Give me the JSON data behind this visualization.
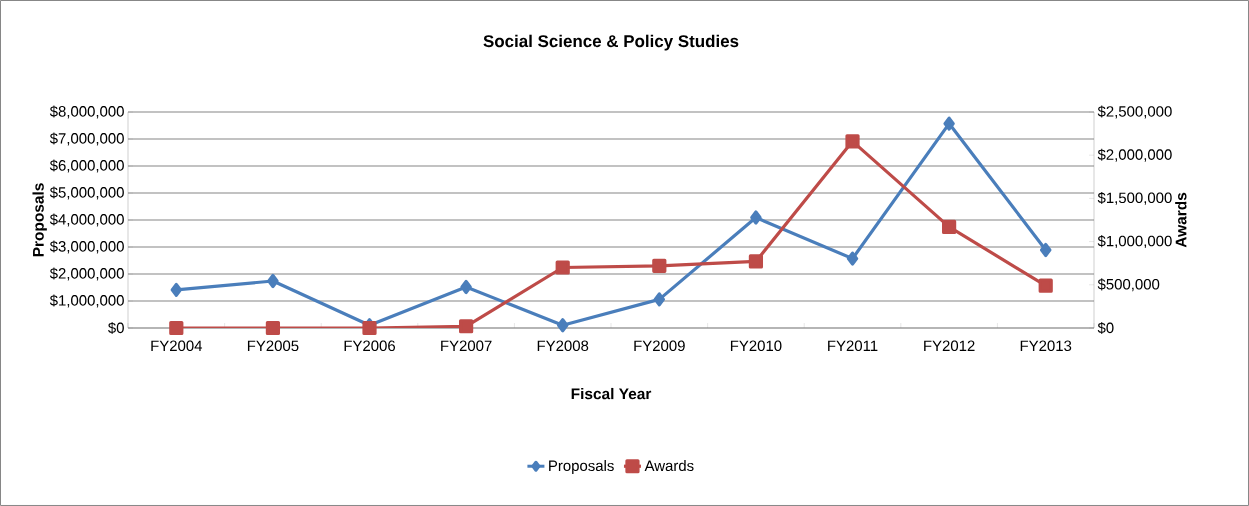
{
  "chart_data": {
    "type": "line",
    "title": "Social Science & Policy Studies",
    "xlabel": "Fiscal Year",
    "ylabel": "Proposals",
    "y2label": "Awards",
    "categories": [
      "FY2004",
      "FY2005",
      "FY2006",
      "FY2007",
      "FY2008",
      "FY2009",
      "FY2010",
      "FY2011",
      "FY2012",
      "FY2013"
    ],
    "series": [
      {
        "name": "Proposals",
        "color": "#4a7ebb",
        "marker": "diamond",
        "values": [
          1410000,
          1740000,
          100000,
          1520000,
          100000,
          1060000,
          4090000,
          2570000,
          7570000,
          2890000
        ]
      },
      {
        "name": "Awards",
        "color": "#be4b48",
        "marker": "square",
        "axis": "y2",
        "values": [
          0,
          0,
          0,
          20000,
          700000,
          720000,
          770000,
          2160000,
          1170000,
          490000
        ]
      }
    ],
    "ylim": [
      0,
      8000000
    ],
    "yticks": [
      {
        "value": 0,
        "label": "$0"
      },
      {
        "value": 1000000,
        "label": "$1,000,000"
      },
      {
        "value": 2000000,
        "label": "$2,000,000"
      },
      {
        "value": 3000000,
        "label": "$3,000,000"
      },
      {
        "value": 4000000,
        "label": "$4,000,000"
      },
      {
        "value": 5000000,
        "label": "$5,000,000"
      },
      {
        "value": 6000000,
        "label": "$6,000,000"
      },
      {
        "value": 7000000,
        "label": "$7,000,000"
      },
      {
        "value": 8000000,
        "label": "$8,000,000"
      }
    ],
    "y2lim": [
      0,
      2500000
    ],
    "y2ticks": [
      {
        "value": 0,
        "label": "$0"
      },
      {
        "value": 500000,
        "label": "$500,000"
      },
      {
        "value": 1000000,
        "label": "$1,000,000"
      },
      {
        "value": 1500000,
        "label": "$1,500,000"
      },
      {
        "value": 2000000,
        "label": "$2,000,000"
      },
      {
        "value": 2500000,
        "label": "$2,500,000"
      }
    ],
    "grid": "y",
    "legend": "bottom",
    "line_style": "solid"
  }
}
